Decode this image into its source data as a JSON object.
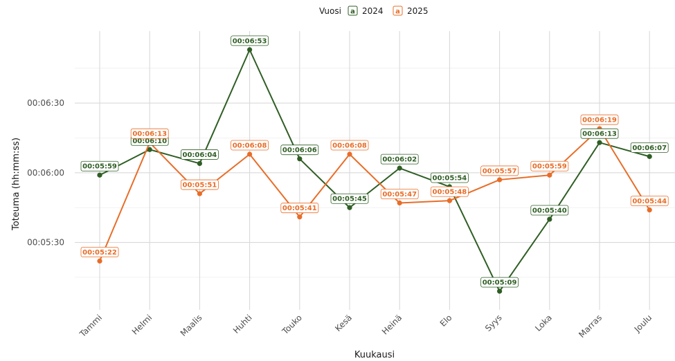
{
  "chart_data": {
    "type": "line",
    "xlabel": "Kuukausi",
    "ylabel": "Toteuma (hh:mm:ss)",
    "categories": [
      "Tammi",
      "Helmi",
      "Maalis",
      "Huhti",
      "Touko",
      "Kesä",
      "Heinä",
      "Elo",
      "Syys",
      "Loka",
      "Marras",
      "Joulu"
    ],
    "y_unit": "seconds",
    "ylim": [
      301,
      421
    ],
    "y_ticks": [
      330,
      360,
      390
    ],
    "y_tick_labels": [
      "00:05:30",
      "00:06:00",
      "00:06:30"
    ],
    "grid": true,
    "legend": {
      "title": "Vuosi",
      "placement": "top",
      "key_glyph": "a"
    },
    "series": [
      {
        "name": "2024",
        "color": "#2f5e24",
        "values": [
          359,
          370,
          364,
          413,
          366,
          345,
          362,
          354,
          309,
          340,
          373,
          367
        ],
        "labels": [
          "00:05:59",
          "00:06:10",
          "00:06:04",
          "00:06:53",
          "00:06:06",
          "00:05:45",
          "00:06:02",
          "00:05:54",
          "00:05:09",
          "00:05:40",
          "00:06:13",
          "00:06:07"
        ]
      },
      {
        "name": "2025",
        "color": "#e86d28",
        "values": [
          322,
          373,
          351,
          368,
          341,
          368,
          347,
          348,
          357,
          359,
          379,
          344
        ],
        "labels": [
          "00:05:22",
          "00:06:13",
          "00:05:51",
          "00:06:08",
          "00:05:41",
          "00:06:08",
          "00:05:47",
          "00:05:48",
          "00:05:57",
          "00:05:59",
          "00:06:19",
          "00:05:44"
        ]
      }
    ]
  }
}
